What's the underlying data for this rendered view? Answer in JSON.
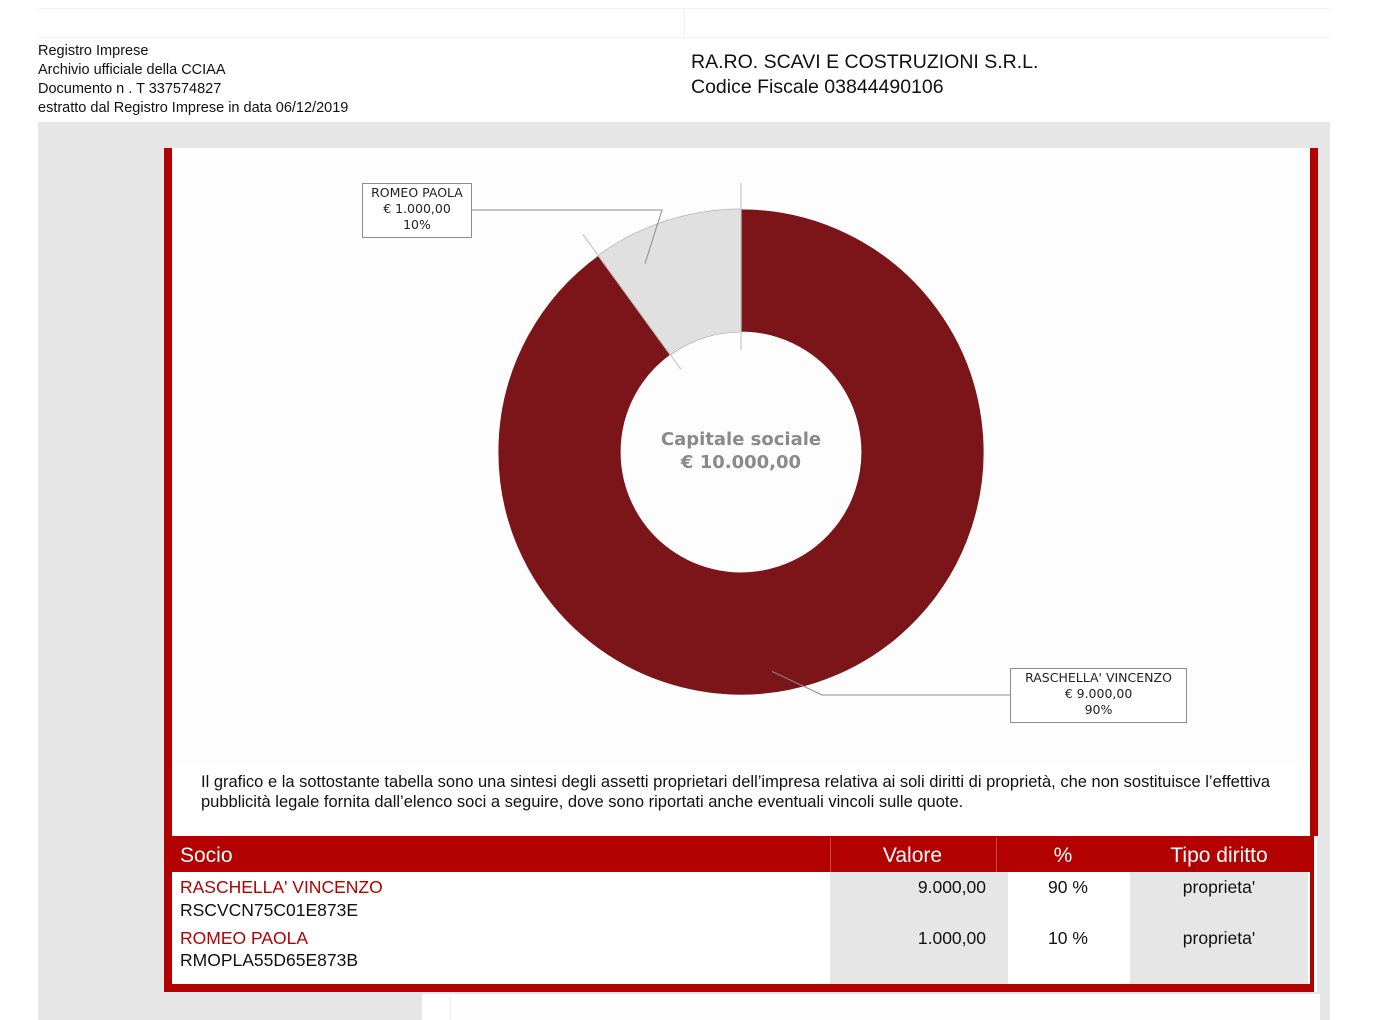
{
  "header": {
    "left_lines": [
      "Registro Imprese",
      "Archivio ufficiale della CCIAA",
      "Documento n . T 337574827",
      "estratto dal Registro Imprese in data 06/12/2019"
    ],
    "company_name": "RA.RO. SCAVI E COSTRUZIONI S.R.L.",
    "codice_fiscale": "Codice Fiscale 03844490106"
  },
  "colors": {
    "frame_red": "#b30000",
    "slice_dark": "#7b1519",
    "slice_light": "#e0e0e0",
    "name_red": "#b30000",
    "center_label_grey": "#8a8a8a"
  },
  "chart_data": {
    "type": "pie",
    "variant": "donut",
    "center_label": [
      "Capitale sociale",
      "€ 10.000,00"
    ],
    "total": 10000,
    "slices": [
      {
        "name": "RASCHELLA' VINCENZO",
        "value": 9000,
        "value_label": "€ 9.000,00",
        "percent": 90,
        "percent_label": "90%",
        "color": "#7b1519"
      },
      {
        "name": "ROMEO PAOLA",
        "value": 1000,
        "value_label": "€ 1.000,00",
        "percent": 10,
        "percent_label": "10%",
        "color": "#e0e0e0"
      }
    ]
  },
  "note": "Il grafico e la sottostante tabella sono una sintesi degli assetti proprietari dell’impresa relativa ai soli diritti di proprietà, che non sostituisce l’effettiva pubblicità legale fornita dall’elenco soci a seguire, dove sono riportati anche eventuali vincoli sulle quote.",
  "table": {
    "headers": {
      "socio": "Socio",
      "valore": "Valore",
      "percent": "%",
      "tipo_diritto": "Tipo diritto"
    },
    "rows": [
      {
        "name": "RASCHELLA' VINCENZO",
        "codice_fiscale": "RSCVCN75C01E873E",
        "valore": "9.000,00",
        "percent": "90 %",
        "tipo_diritto": "proprieta'"
      },
      {
        "name": "ROMEO PAOLA",
        "codice_fiscale": "RMOPLA55D65E873B",
        "valore": "1.000,00",
        "percent": "10 %",
        "tipo_diritto": "proprieta'"
      }
    ]
  }
}
